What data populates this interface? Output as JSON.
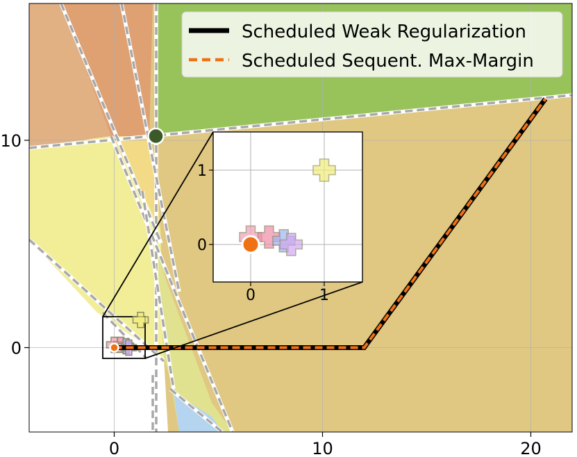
{
  "chart_data": {
    "type": "line",
    "title": "",
    "xlabel": "",
    "ylabel": "",
    "xlim": [
      -4,
      22
    ],
    "ylim": [
      -4,
      16.5
    ],
    "x_ticks": [
      0,
      10,
      20
    ],
    "y_ticks": [
      0,
      10
    ],
    "grid": true,
    "legend_position": "top-right",
    "series": [
      {
        "name": "Scheduled Weak Regularization",
        "style": "solid",
        "color": "#000000",
        "points": [
          [
            0,
            0
          ],
          [
            12,
            0
          ],
          [
            20.7,
            12
          ]
        ]
      },
      {
        "name": "Scheduled Sequent. Max-Margin",
        "style": "dashed",
        "color": "#f07014",
        "points": [
          [
            0,
            0
          ],
          [
            12,
            0
          ],
          [
            20.7,
            12
          ]
        ]
      }
    ],
    "markers": [
      {
        "shape": "circle",
        "x": 0,
        "y": 0,
        "color": "#f07014"
      },
      {
        "shape": "circle",
        "x": 2,
        "y": 10.2,
        "color": "#3c5a28"
      }
    ],
    "class_points": [
      {
        "shape": "plus",
        "x": 1.0,
        "y": 1.0,
        "color": "#f0ec78"
      },
      {
        "shape": "plus",
        "x": 0.0,
        "y": 0.1,
        "color": "#f0a0b4"
      },
      {
        "shape": "plus",
        "x": 0.25,
        "y": 0.1,
        "color": "#f08ca8"
      },
      {
        "shape": "plus",
        "x": 0.45,
        "y": 0.05,
        "color": "#a0b4f0"
      },
      {
        "shape": "plus",
        "x": 0.55,
        "y": 0.0,
        "color": "#d0a8f0"
      }
    ],
    "regions": [
      {
        "name": "green region",
        "color": "#98c35a"
      },
      {
        "name": "tan region",
        "color": "#e0c882"
      },
      {
        "name": "peach region",
        "color": "#e1b083"
      },
      {
        "name": "orange region",
        "color": "#dfa072"
      },
      {
        "name": "yellow region",
        "color": "#f2ee98"
      },
      {
        "name": "light yellow region",
        "color": "#f2da86"
      },
      {
        "name": "olive region",
        "color": "#e0e290"
      },
      {
        "name": "blue region",
        "color": "#b4d4f0"
      },
      {
        "name": "white region",
        "color": "#ffffff"
      }
    ],
    "inset": {
      "xlim": [
        -0.5,
        1.5
      ],
      "ylim": [
        -0.5,
        1.5
      ],
      "x_ticks": [
        0,
        1
      ],
      "y_ticks": [
        0,
        1
      ]
    }
  }
}
